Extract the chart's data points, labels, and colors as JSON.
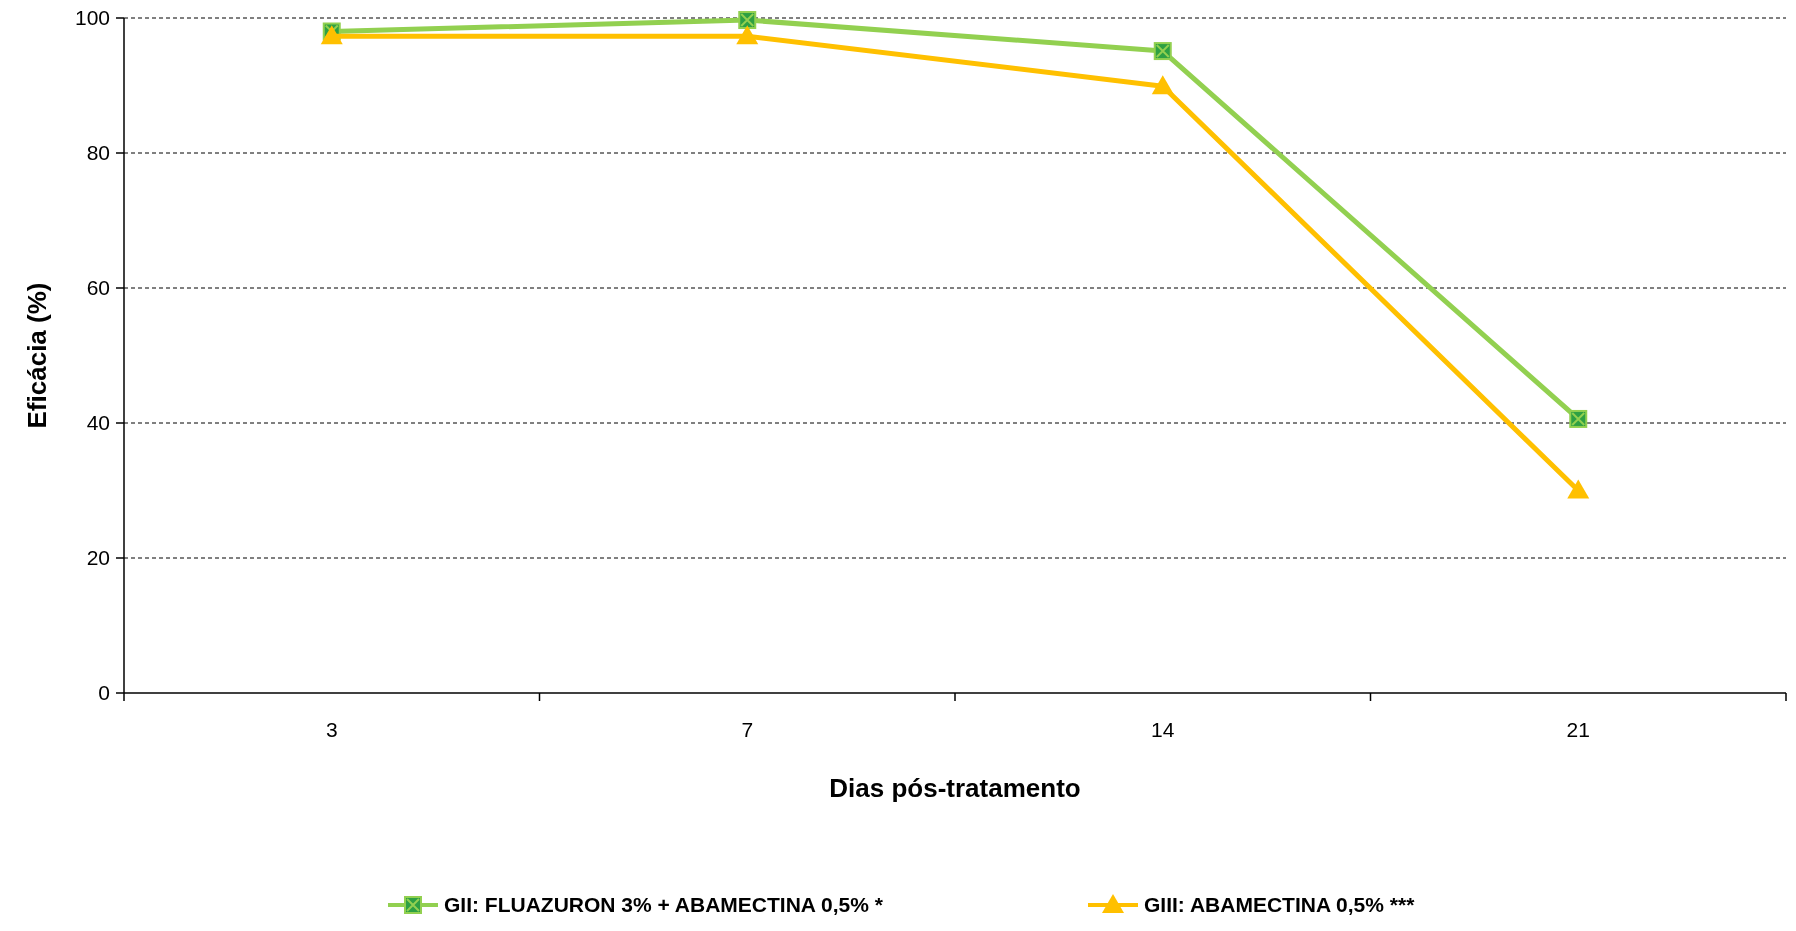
{
  "chart_data": {
    "type": "line",
    "xlabel": "Dias pós-tratamento",
    "ylabel": "Eficácia (%)",
    "categories": [
      "3",
      "7",
      "14",
      "21"
    ],
    "series": [
      {
        "name": "GII: FLUAZURON  3% + ABAMECTINA  0,5% *",
        "color": "#92d050",
        "marker": "square",
        "values": [
          98,
          99.7,
          95.1,
          40.6
        ]
      },
      {
        "name": "GIII: ABAMECTINA  0,5% ***",
        "color": "#ffc000",
        "marker": "triangle",
        "values": [
          97.3,
          97.3,
          89.9,
          30
        ]
      }
    ],
    "ylim": [
      0,
      100
    ],
    "yticks": [
      0,
      20,
      40,
      60,
      80,
      100
    ],
    "grid": "y",
    "legend": "bottom"
  }
}
